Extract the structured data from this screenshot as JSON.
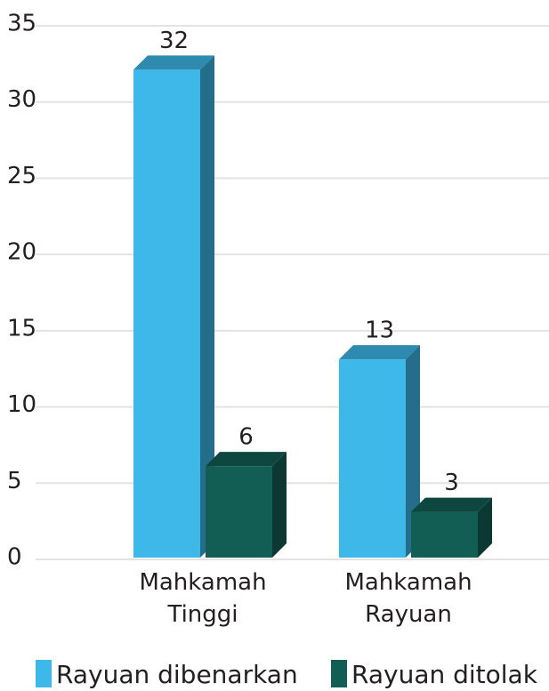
{
  "chart_data": {
    "type": "bar3d",
    "categories": [
      "Mahkamah Tinggi",
      "Mahkamah Rayuan"
    ],
    "series": [
      {
        "name": "Rayuan dibenarkan",
        "color": "#3db8e8",
        "values": [
          32,
          13
        ]
      },
      {
        "name": "Rayuan ditolak",
        "color": "#135e54",
        "values": [
          6,
          3
        ]
      }
    ],
    "ylim": [
      0,
      35
    ],
    "yticks": [
      0,
      5,
      10,
      15,
      20,
      25,
      30,
      35
    ],
    "grid": true
  }
}
